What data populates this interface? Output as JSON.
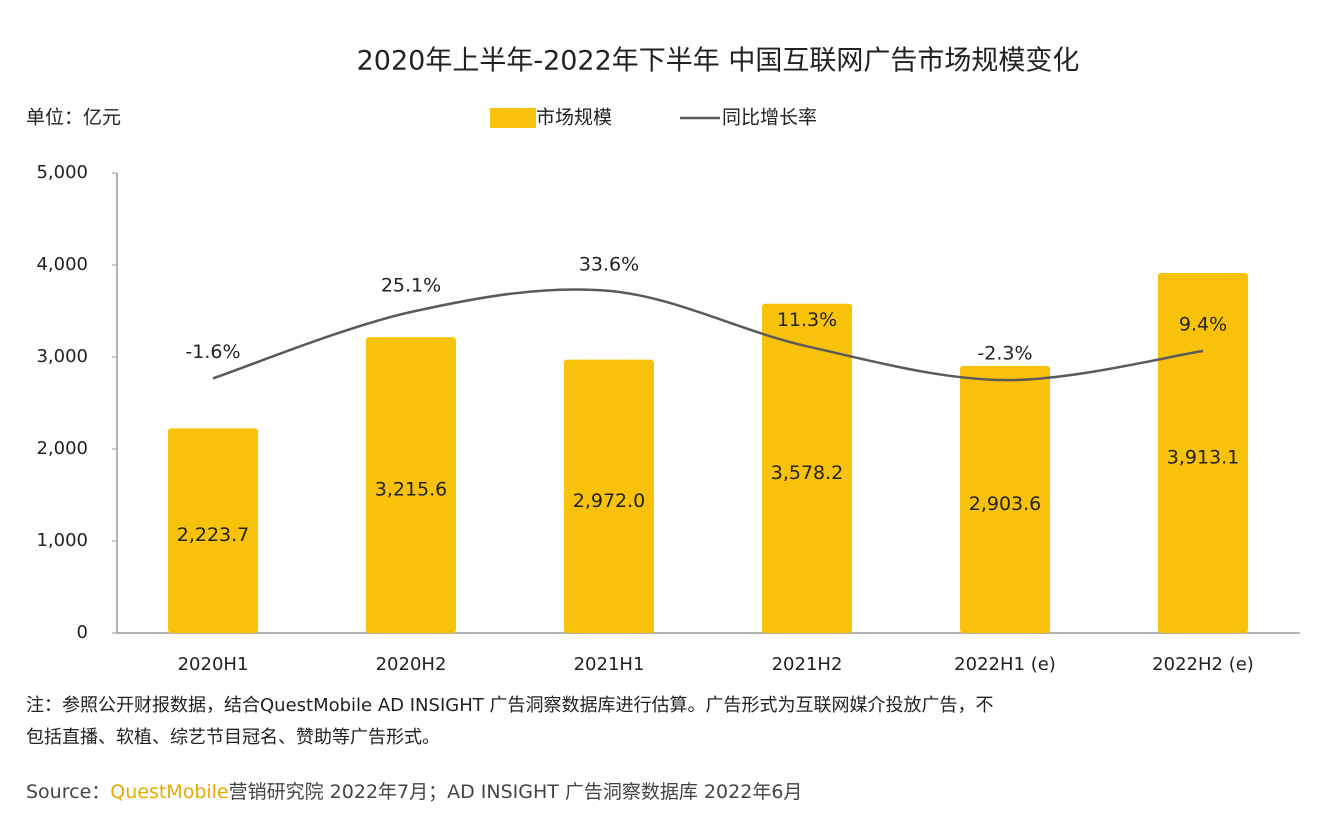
{
  "chart_data": {
    "type": "bar",
    "title": "2020年上半年-2022年下半年 中国互联网广告市场规模变化",
    "unit_label": "单位：亿元",
    "categories": [
      "2020H1",
      "2020H2",
      "2021H1",
      "2021H2",
      "2022H1 (e)",
      "2022H2 (e)"
    ],
    "series": [
      {
        "name": "市场规模",
        "type": "bar",
        "color": "#f9c20a",
        "values": [
          2223.7,
          3215.6,
          2972.0,
          3578.2,
          2903.6,
          3913.1
        ],
        "value_labels": [
          "2,223.7",
          "3,215.6",
          "2,972.0",
          "3,578.2",
          "2,903.6",
          "3,913.1"
        ]
      },
      {
        "name": "同比增长率",
        "type": "line",
        "axis": "y2",
        "color": "#5a5a5a",
        "values": [
          -1.6,
          25.1,
          33.6,
          11.3,
          -2.3,
          9.4
        ],
        "value_labels": [
          "-1.6%",
          "25.1%",
          "33.6%",
          "11.3%",
          "-2.3%",
          "9.4%"
        ]
      }
    ],
    "ylim": [
      0,
      5000
    ],
    "yticks": [
      0,
      {
        "value": 1000,
        "label": "1,000"
      },
      {
        "value": 2000,
        "label": "2,000"
      },
      {
        "value": 3000,
        "label": "3,000"
      },
      {
        "value": 4000,
        "label": "4,000"
      },
      {
        "value": 5000,
        "label": "5,000"
      }
    ],
    "y2lim": [
      -104,
      81
    ],
    "notes": [
      "注：参照公开财报数据，结合QuestMobile AD INSIGHT 广告洞察数据库进行估算。广告形式为互联网媒介投放广告，不",
      "包括直播、软植、综艺节目冠名、赞助等广告形式。"
    ],
    "source": {
      "prefix": "Source：",
      "brand": "QuestMobile",
      "rest": "营销研究院 2022年7月；AD INSIGHT 广告洞察数据库 2022年6月"
    }
  }
}
